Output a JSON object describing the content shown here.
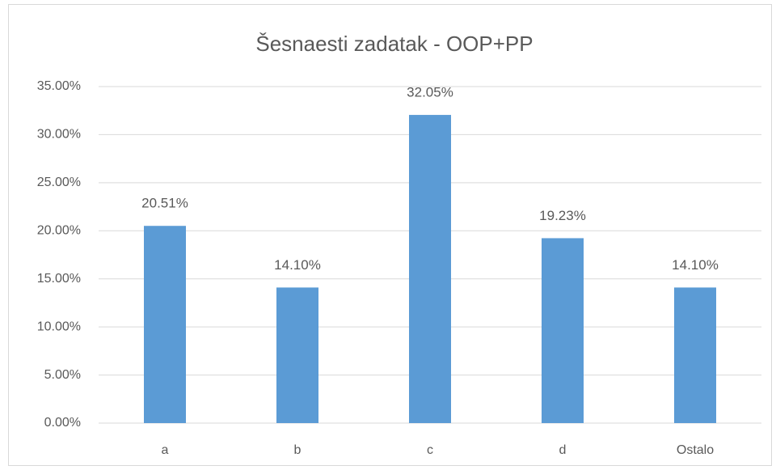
{
  "chart_data": {
    "type": "bar",
    "title": "Šesnaesti zadatak - OOP+PP",
    "categories": [
      "a",
      "b",
      "c",
      "d",
      "Ostalo"
    ],
    "values": [
      20.51,
      14.1,
      32.05,
      19.23,
      14.1
    ],
    "value_labels": [
      "20.51%",
      "14.10%",
      "32.05%",
      "19.23%",
      "14.10%"
    ],
    "color": "#5b9bd5",
    "ylim": [
      0,
      35
    ],
    "yticks": [
      {
        "value": 0,
        "label": "0.00%"
      },
      {
        "value": 5,
        "label": "5.00%"
      },
      {
        "value": 10,
        "label": "10.00%"
      },
      {
        "value": 15,
        "label": "15.00%"
      },
      {
        "value": 20,
        "label": "20.00%"
      },
      {
        "value": 25,
        "label": "25.00%"
      },
      {
        "value": 30,
        "label": "30.00%"
      },
      {
        "value": 35,
        "label": "35.00%"
      }
    ],
    "grid": true
  }
}
